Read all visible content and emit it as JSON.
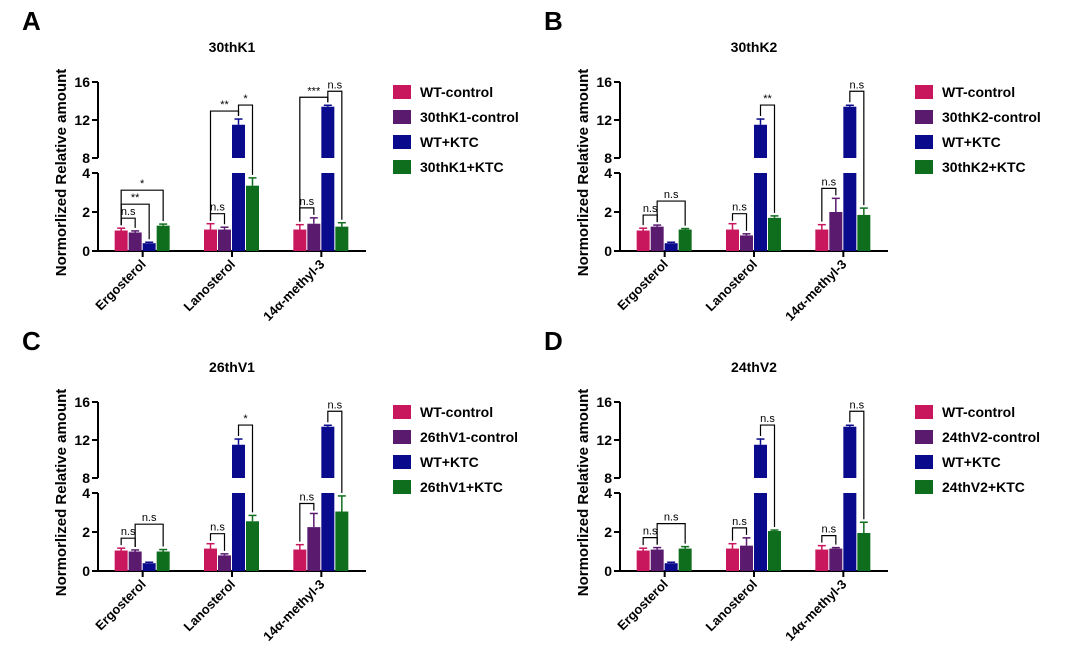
{
  "colors": {
    "series": [
      "#c8175d",
      "#5a1a6e",
      "#0a0a8c",
      "#0f6e1e"
    ],
    "axis": "#000000"
  },
  "chart_data": [
    {
      "panel": "A",
      "type": "bar",
      "title": "30thK1",
      "ylabel": "Normorlized Relative amount",
      "xlabel": "",
      "ylim": [
        0,
        16
      ],
      "broken_axis": {
        "lower": [
          0,
          4
        ],
        "upper": [
          8,
          16
        ]
      },
      "yticks": [
        "0",
        "2",
        "4",
        "8",
        "12",
        "16"
      ],
      "categories": [
        "Ergosterol",
        "Lanosterol",
        "14α-methyl-3"
      ],
      "series": [
        {
          "name": "WT-control",
          "values": [
            1.05,
            1.1,
            1.1
          ],
          "errors": [
            0.12,
            0.3,
            0.25
          ]
        },
        {
          "name": "30thK1-control",
          "values": [
            0.95,
            1.1,
            1.4
          ],
          "errors": [
            0.08,
            0.12,
            0.3
          ]
        },
        {
          "name": "WT+KTC",
          "values": [
            0.4,
            11.5,
            13.4
          ],
          "errors": [
            0.05,
            0.6,
            0.15
          ]
        },
        {
          "name": "30thK1+KTC",
          "values": [
            1.3,
            3.35,
            1.25
          ],
          "errors": [
            0.08,
            0.4,
            0.2
          ]
        }
      ],
      "annotations": [
        {
          "cat": 0,
          "from": 0,
          "to": 1,
          "label": "n.s",
          "level": 0
        },
        {
          "cat": 0,
          "from": 0,
          "to": 2,
          "label": "**",
          "level": 1
        },
        {
          "cat": 0,
          "from": 0,
          "to": 3,
          "label": "*",
          "level": 2
        },
        {
          "cat": 1,
          "from": 0,
          "to": 1,
          "label": "n.s",
          "level": 0
        },
        {
          "cat": 1,
          "from": 0,
          "to": 2,
          "label": "**",
          "level": 1
        },
        {
          "cat": 1,
          "from": 2,
          "to": 3,
          "label": "*",
          "level": 2
        },
        {
          "cat": 2,
          "from": 0,
          "to": 1,
          "label": "n.s",
          "level": 0
        },
        {
          "cat": 2,
          "from": 0,
          "to": 2,
          "label": "***",
          "level": 1
        },
        {
          "cat": 2,
          "from": 2,
          "to": 3,
          "label": "n.s",
          "level": 2
        }
      ]
    },
    {
      "panel": "B",
      "type": "bar",
      "title": "30thK2",
      "ylabel": "Normorlized Relative amount",
      "xlabel": "",
      "ylim": [
        0,
        16
      ],
      "broken_axis": {
        "lower": [
          0,
          4
        ],
        "upper": [
          8,
          16
        ]
      },
      "yticks": [
        "0",
        "2",
        "4",
        "8",
        "12",
        "16"
      ],
      "categories": [
        "Ergosterol",
        "Lanosterol",
        "14α-methyl-3"
      ],
      "series": [
        {
          "name": "WT-control",
          "values": [
            1.05,
            1.1,
            1.1
          ],
          "errors": [
            0.12,
            0.3,
            0.25
          ]
        },
        {
          "name": "30thK2-control",
          "values": [
            1.25,
            0.8,
            2.0
          ],
          "errors": [
            0.08,
            0.08,
            0.7
          ]
        },
        {
          "name": "WT+KTC",
          "values": [
            0.4,
            11.5,
            13.4
          ],
          "errors": [
            0.05,
            0.6,
            0.15
          ]
        },
        {
          "name": "30thK2+KTC",
          "values": [
            1.1,
            1.7,
            1.85
          ],
          "errors": [
            0.05,
            0.1,
            0.35
          ]
        }
      ],
      "annotations": [
        {
          "cat": 0,
          "from": 0,
          "to": 1,
          "label": "n.s",
          "level": 0
        },
        {
          "cat": 0,
          "from": 1,
          "to": 3,
          "label": "n.s",
          "level": 1
        },
        {
          "cat": 1,
          "from": 0,
          "to": 1,
          "label": "n.s",
          "level": 0
        },
        {
          "cat": 1,
          "from": 2,
          "to": 3,
          "label": "**",
          "level": 2
        },
        {
          "cat": 2,
          "from": 0,
          "to": 1,
          "label": "n.s",
          "level": 0
        },
        {
          "cat": 2,
          "from": 2,
          "to": 3,
          "label": "n.s",
          "level": 2
        }
      ]
    },
    {
      "panel": "C",
      "type": "bar",
      "title": "26thV1",
      "ylabel": "Normorlized Relative amount",
      "xlabel": "",
      "ylim": [
        0,
        16
      ],
      "broken_axis": {
        "lower": [
          0,
          4
        ],
        "upper": [
          8,
          16
        ]
      },
      "yticks": [
        "0",
        "2",
        "4",
        "8",
        "12",
        "16"
      ],
      "categories": [
        "Ergosterol",
        "Lanosterol",
        "14α-methyl-3"
      ],
      "series": [
        {
          "name": "WT-control",
          "values": [
            1.05,
            1.15,
            1.1
          ],
          "errors": [
            0.12,
            0.25,
            0.25
          ]
        },
        {
          "name": "26thV1-control",
          "values": [
            1.0,
            0.8,
            2.25
          ],
          "errors": [
            0.08,
            0.08,
            0.7
          ]
        },
        {
          "name": "WT+KTC",
          "values": [
            0.4,
            11.5,
            13.4
          ],
          "errors": [
            0.05,
            0.6,
            0.15
          ]
        },
        {
          "name": "26thV1+KTC",
          "values": [
            1.0,
            2.55,
            3.05
          ],
          "errors": [
            0.1,
            0.3,
            0.8
          ]
        }
      ],
      "annotations": [
        {
          "cat": 0,
          "from": 0,
          "to": 1,
          "label": "n.s",
          "level": 0
        },
        {
          "cat": 0,
          "from": 1,
          "to": 3,
          "label": "n.s",
          "level": 1
        },
        {
          "cat": 1,
          "from": 0,
          "to": 1,
          "label": "n.s",
          "level": 0
        },
        {
          "cat": 1,
          "from": 2,
          "to": 3,
          "label": "*",
          "level": 2
        },
        {
          "cat": 2,
          "from": 0,
          "to": 1,
          "label": "n.s",
          "level": 0
        },
        {
          "cat": 2,
          "from": 2,
          "to": 3,
          "label": "n.s",
          "level": 2
        }
      ]
    },
    {
      "panel": "D",
      "type": "bar",
      "title": "24thV2",
      "ylabel": "Normorlized Relative amount",
      "xlabel": "",
      "ylim": [
        0,
        16
      ],
      "broken_axis": {
        "lower": [
          0,
          4
        ],
        "upper": [
          8,
          16
        ]
      },
      "yticks": [
        "0",
        "2",
        "4",
        "8",
        "12",
        "16"
      ],
      "categories": [
        "Ergosterol",
        "Lanosterol",
        "14α-methyl-3"
      ],
      "series": [
        {
          "name": "WT-control",
          "values": [
            1.05,
            1.15,
            1.1
          ],
          "errors": [
            0.12,
            0.25,
            0.2
          ]
        },
        {
          "name": "24thV2-control",
          "values": [
            1.1,
            1.3,
            1.15
          ],
          "errors": [
            0.1,
            0.4,
            0.05
          ]
        },
        {
          "name": "WT+KTC",
          "values": [
            0.4,
            11.5,
            13.4
          ],
          "errors": [
            0.05,
            0.6,
            0.15
          ]
        },
        {
          "name": "24thV2+KTC",
          "values": [
            1.15,
            2.05,
            1.95
          ],
          "errors": [
            0.1,
            0.05,
            0.55
          ]
        }
      ],
      "annotations": [
        {
          "cat": 0,
          "from": 0,
          "to": 1,
          "label": "n.s",
          "level": 0
        },
        {
          "cat": 0,
          "from": 1,
          "to": 3,
          "label": "n.s",
          "level": 1
        },
        {
          "cat": 1,
          "from": 0,
          "to": 1,
          "label": "n.s",
          "level": 0
        },
        {
          "cat": 1,
          "from": 2,
          "to": 3,
          "label": "n.s",
          "level": 2
        },
        {
          "cat": 2,
          "from": 0,
          "to": 1,
          "label": "n.s",
          "level": 0
        },
        {
          "cat": 2,
          "from": 2,
          "to": 3,
          "label": "n.s",
          "level": 2
        }
      ]
    }
  ]
}
